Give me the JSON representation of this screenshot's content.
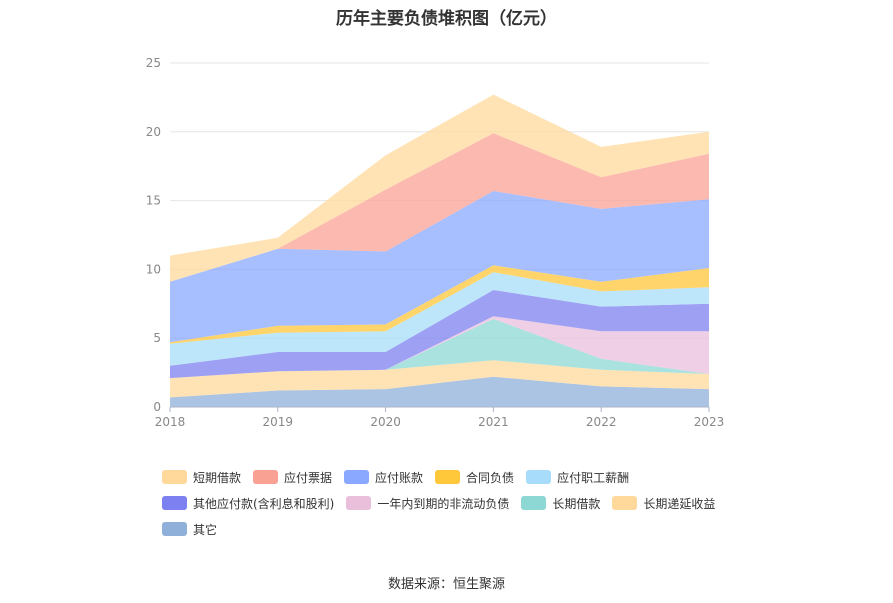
{
  "title": "历年主要负债堆积图（亿元）",
  "source": "数据来源：恒生聚源",
  "chart_data": {
    "type": "area",
    "stacked": true,
    "title": "历年主要负债堆积图（亿元）",
    "x": [
      "2018",
      "2019",
      "2020",
      "2021",
      "2022",
      "2023"
    ],
    "ylim": [
      0,
      25
    ],
    "yticks": [
      0,
      5,
      10,
      15,
      20,
      25
    ],
    "grid": true,
    "legend_position": "bottom",
    "series": [
      {
        "name": "其它",
        "color": "#8fb0d9",
        "values": [
          0.7,
          1.2,
          1.3,
          2.2,
          1.5,
          1.3
        ]
      },
      {
        "name": "长期递延收益",
        "color": "#ffd99c",
        "values": [
          1.4,
          1.4,
          1.4,
          1.2,
          1.2,
          1.1
        ]
      },
      {
        "name": "长期借款",
        "color": "#8dd8d5",
        "values": [
          0,
          0,
          0,
          3.0,
          0.8,
          0
        ]
      },
      {
        "name": "一年内到期的非流动负债",
        "color": "#e9bfdc",
        "values": [
          0,
          0,
          0,
          0.2,
          2.0,
          3.1
        ]
      },
      {
        "name": "其他应付款(含利息和股利)",
        "color": "#7d80f0",
        "values": [
          0.9,
          1.4,
          1.3,
          1.9,
          1.8,
          2.0
        ]
      },
      {
        "name": "应付职工薪酬",
        "color": "#a7ddfa",
        "values": [
          1.6,
          1.4,
          1.5,
          1.3,
          1.1,
          1.2
        ]
      },
      {
        "name": "合同负债",
        "color": "#ffc73a",
        "values": [
          0.1,
          0.5,
          0.5,
          0.5,
          0.7,
          1.4
        ]
      },
      {
        "name": "应付账款",
        "color": "#8aa8ff",
        "values": [
          4.4,
          5.6,
          5.3,
          5.4,
          5.3,
          5.0
        ]
      },
      {
        "name": "应付票据",
        "color": "#f9a294",
        "values": [
          0,
          0,
          4.5,
          4.2,
          2.3,
          3.3
        ]
      },
      {
        "name": "短期借款",
        "color": "#ffd99c",
        "values": [
          1.9,
          0.8,
          2.5,
          2.8,
          2.2,
          1.6
        ]
      }
    ]
  },
  "legend_order": [
    9,
    8,
    7,
    6,
    5,
    4,
    3,
    2,
    1,
    0
  ]
}
